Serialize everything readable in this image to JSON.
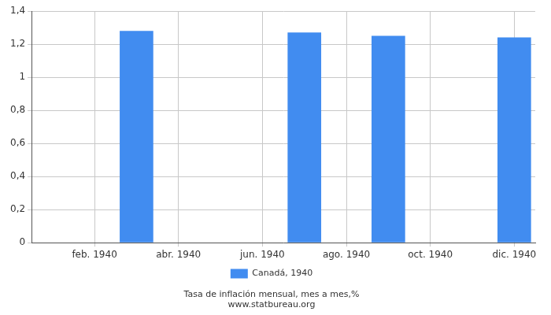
{
  "chart_data": {
    "type": "bar",
    "title": "Tasa de inflación mensual, mes a mes,%",
    "subtitle": "www.statbureau.org",
    "categories": [
      null,
      "feb. 1940",
      null,
      "abr. 1940",
      null,
      "jun. 1940",
      null,
      "ago. 1940",
      null,
      "oct. 1940",
      null,
      "dic. 1940"
    ],
    "series": [
      {
        "name": "Canadá, 1940",
        "color": "#418cf0",
        "values": [
          0,
          0,
          1.28,
          0,
          0,
          0,
          1.27,
          0,
          1.25,
          0,
          0,
          1.24
        ]
      }
    ],
    "ylim": [
      0,
      1.4
    ],
    "yticks": [
      0,
      {
        "value": 0.2,
        "label": "0,2"
      },
      {
        "value": 0.4,
        "label": "0,4"
      },
      {
        "value": 0.6,
        "label": "0,6"
      },
      {
        "value": 0.8,
        "label": "0,8"
      },
      1,
      {
        "value": 1.2,
        "label": "1,2"
      },
      {
        "value": 1.4,
        "label": "1,4"
      }
    ],
    "grid": true,
    "legend": "bottom"
  }
}
